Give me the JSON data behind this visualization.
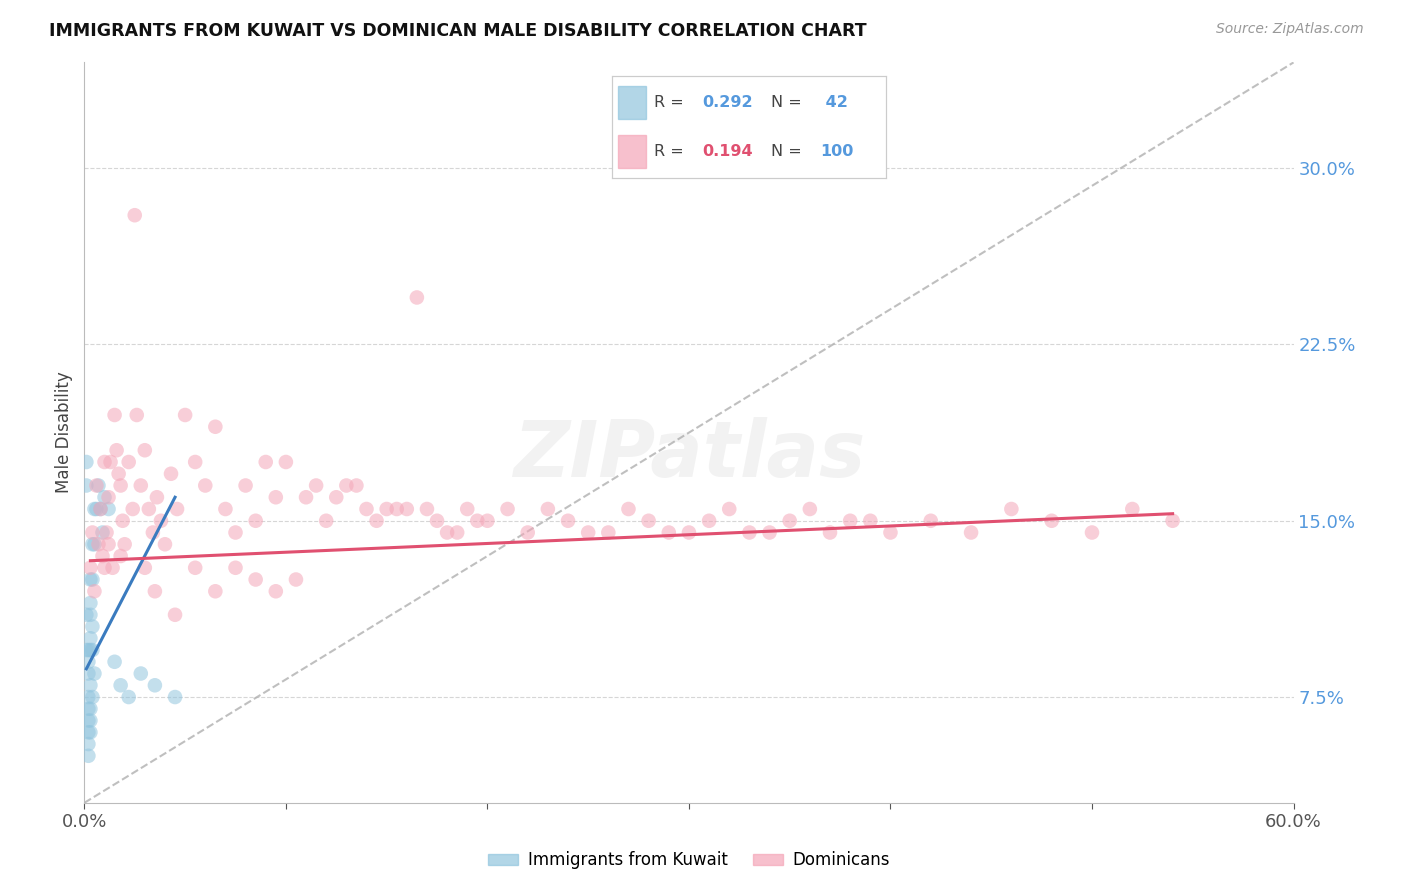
{
  "title": "IMMIGRANTS FROM KUWAIT VS DOMINICAN MALE DISABILITY CORRELATION CHART",
  "source": "Source: ZipAtlas.com",
  "ylabel": "Male Disability",
  "ytick_labels": [
    "7.5%",
    "15.0%",
    "22.5%",
    "30.0%"
  ],
  "ytick_values": [
    0.075,
    0.15,
    0.225,
    0.3
  ],
  "xlim": [
    0.0,
    0.6
  ],
  "ylim": [
    0.03,
    0.345
  ],
  "legend_r1": "R = 0.292",
  "legend_n1": "42",
  "legend_r2": "R = 0.194",
  "legend_n2": "100",
  "color_blue": "#92c5de",
  "color_pink": "#f4a6b8",
  "trend_blue": "#3a7bbf",
  "trend_pink": "#e05070",
  "trend_dashed_color": "#b0b0b0",
  "watermark": "ZIPatlas",
  "background_color": "#ffffff",
  "grid_color": "#cccccc",
  "kuwait_x": [
    0.001,
    0.001,
    0.001,
    0.001,
    0.002,
    0.002,
    0.002,
    0.002,
    0.002,
    0.002,
    0.002,
    0.002,
    0.002,
    0.003,
    0.003,
    0.003,
    0.003,
    0.003,
    0.003,
    0.003,
    0.003,
    0.003,
    0.004,
    0.004,
    0.004,
    0.004,
    0.004,
    0.005,
    0.005,
    0.005,
    0.006,
    0.007,
    0.008,
    0.009,
    0.01,
    0.012,
    0.015,
    0.018,
    0.022,
    0.028,
    0.035,
    0.045
  ],
  "kuwait_y": [
    0.175,
    0.165,
    0.11,
    0.095,
    0.095,
    0.09,
    0.085,
    0.075,
    0.07,
    0.065,
    0.06,
    0.055,
    0.05,
    0.125,
    0.115,
    0.11,
    0.1,
    0.095,
    0.08,
    0.07,
    0.065,
    0.06,
    0.14,
    0.125,
    0.105,
    0.095,
    0.075,
    0.155,
    0.14,
    0.085,
    0.155,
    0.165,
    0.155,
    0.145,
    0.16,
    0.155,
    0.09,
    0.08,
    0.075,
    0.085,
    0.08,
    0.075
  ],
  "dominican_x": [
    0.003,
    0.004,
    0.005,
    0.006,
    0.007,
    0.008,
    0.009,
    0.01,
    0.011,
    0.012,
    0.013,
    0.014,
    0.015,
    0.016,
    0.017,
    0.018,
    0.019,
    0.02,
    0.022,
    0.024,
    0.026,
    0.028,
    0.03,
    0.032,
    0.034,
    0.036,
    0.038,
    0.04,
    0.043,
    0.046,
    0.05,
    0.055,
    0.06,
    0.065,
    0.07,
    0.075,
    0.08,
    0.085,
    0.09,
    0.095,
    0.1,
    0.11,
    0.12,
    0.13,
    0.14,
    0.15,
    0.16,
    0.17,
    0.18,
    0.19,
    0.2,
    0.21,
    0.22,
    0.23,
    0.24,
    0.26,
    0.28,
    0.3,
    0.32,
    0.34,
    0.36,
    0.38,
    0.4,
    0.42,
    0.44,
    0.46,
    0.48,
    0.5,
    0.52,
    0.54,
    0.01,
    0.012,
    0.018,
    0.025,
    0.03,
    0.035,
    0.045,
    0.055,
    0.065,
    0.075,
    0.085,
    0.095,
    0.105,
    0.115,
    0.125,
    0.135,
    0.145,
    0.155,
    0.165,
    0.175,
    0.185,
    0.195,
    0.25,
    0.27,
    0.29,
    0.31,
    0.33,
    0.35,
    0.37,
    0.39
  ],
  "dominican_y": [
    0.13,
    0.145,
    0.12,
    0.165,
    0.14,
    0.155,
    0.135,
    0.175,
    0.145,
    0.16,
    0.175,
    0.13,
    0.195,
    0.18,
    0.17,
    0.165,
    0.15,
    0.14,
    0.175,
    0.155,
    0.195,
    0.165,
    0.18,
    0.155,
    0.145,
    0.16,
    0.15,
    0.14,
    0.17,
    0.155,
    0.195,
    0.175,
    0.165,
    0.19,
    0.155,
    0.145,
    0.165,
    0.15,
    0.175,
    0.16,
    0.175,
    0.16,
    0.15,
    0.165,
    0.155,
    0.155,
    0.155,
    0.155,
    0.145,
    0.155,
    0.15,
    0.155,
    0.145,
    0.155,
    0.15,
    0.145,
    0.15,
    0.145,
    0.155,
    0.145,
    0.155,
    0.15,
    0.145,
    0.15,
    0.145,
    0.155,
    0.15,
    0.145,
    0.155,
    0.15,
    0.13,
    0.14,
    0.135,
    0.28,
    0.13,
    0.12,
    0.11,
    0.13,
    0.12,
    0.13,
    0.125,
    0.12,
    0.125,
    0.165,
    0.16,
    0.165,
    0.15,
    0.155,
    0.245,
    0.15,
    0.145,
    0.15,
    0.145,
    0.155,
    0.145,
    0.15,
    0.145,
    0.15,
    0.145,
    0.15
  ]
}
